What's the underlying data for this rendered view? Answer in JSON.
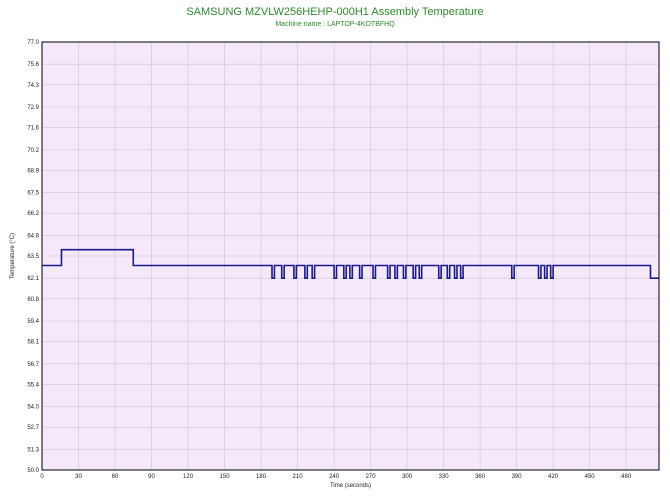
{
  "chart_data": {
    "type": "line",
    "title": "SAMSUNG MZVLW256HEHP-000H1 Assembly Temperature",
    "subtitle": "Machine name : LAPTOP-4KOTBFHQ",
    "xlabel": "Time (seconds)",
    "ylabel": "Temperature (°C)",
    "xlim": [
      0,
      507
    ],
    "ylim": [
      50.0,
      77.0
    ],
    "x_ticks": [
      0,
      30,
      60,
      90,
      120,
      150,
      180,
      210,
      240,
      270,
      300,
      330,
      360,
      390,
      420,
      450,
      480
    ],
    "y_ticks": [
      "77.0",
      "75.6",
      "74.3",
      "72.9",
      "71.6",
      "70.2",
      "68.9",
      "67.5",
      "66.2",
      "64.8",
      "63.5",
      "62.1",
      "60.8",
      "59.4",
      "58.1",
      "56.7",
      "55.4",
      "54.0",
      "52.7",
      "51.3",
      "50.0"
    ],
    "grid": true,
    "series": [
      {
        "color": "#1a1a8c",
        "x": [
          0,
          16,
          16,
          75,
          75,
          189,
          189,
          191,
          191,
          197,
          197,
          199,
          199,
          207,
          207,
          209,
          209,
          216,
          216,
          218,
          218,
          222,
          222,
          224,
          224,
          240,
          240,
          242,
          242,
          248,
          248,
          250,
          250,
          253,
          253,
          255,
          255,
          261,
          261,
          263,
          263,
          272,
          272,
          274,
          274,
          284,
          284,
          286,
          286,
          290,
          290,
          292,
          292,
          297,
          297,
          299,
          299,
          305,
          305,
          307,
          307,
          310,
          310,
          312,
          312,
          326,
          326,
          328,
          328,
          333,
          333,
          335,
          335,
          339,
          339,
          341,
          341,
          344,
          344,
          346,
          346,
          386,
          386,
          388,
          388,
          408,
          408,
          410,
          410,
          413,
          413,
          415,
          415,
          418,
          418,
          420,
          420,
          500,
          500,
          507
        ],
        "y": [
          62.9,
          62.9,
          63.9,
          63.9,
          62.9,
          62.9,
          62.1,
          62.1,
          62.9,
          62.9,
          62.1,
          62.1,
          62.9,
          62.9,
          62.1,
          62.1,
          62.9,
          62.9,
          62.1,
          62.1,
          62.9,
          62.9,
          62.1,
          62.1,
          62.9,
          62.9,
          62.1,
          62.1,
          62.9,
          62.9,
          62.1,
          62.1,
          62.9,
          62.9,
          62.1,
          62.1,
          62.9,
          62.9,
          62.1,
          62.1,
          62.9,
          62.9,
          62.1,
          62.1,
          62.9,
          62.9,
          62.1,
          62.1,
          62.9,
          62.9,
          62.1,
          62.1,
          62.9,
          62.9,
          62.1,
          62.1,
          62.9,
          62.9,
          62.1,
          62.1,
          62.9,
          62.9,
          62.1,
          62.1,
          62.9,
          62.9,
          62.1,
          62.1,
          62.9,
          62.9,
          62.1,
          62.1,
          62.9,
          62.9,
          62.1,
          62.1,
          62.9,
          62.9,
          62.1,
          62.1,
          62.9,
          62.9,
          62.1,
          62.1,
          62.9,
          62.9,
          62.1,
          62.1,
          62.9,
          62.9,
          62.1,
          62.1,
          62.9,
          62.9,
          62.1,
          62.1,
          62.9,
          62.9,
          62.1,
          62.1
        ]
      }
    ]
  },
  "colors": {
    "title": "#2e8b2e",
    "plot_background": "#f6e8fb",
    "grid": "#c9c9c9",
    "line": "#1a1a8c",
    "frame": "#000000"
  }
}
